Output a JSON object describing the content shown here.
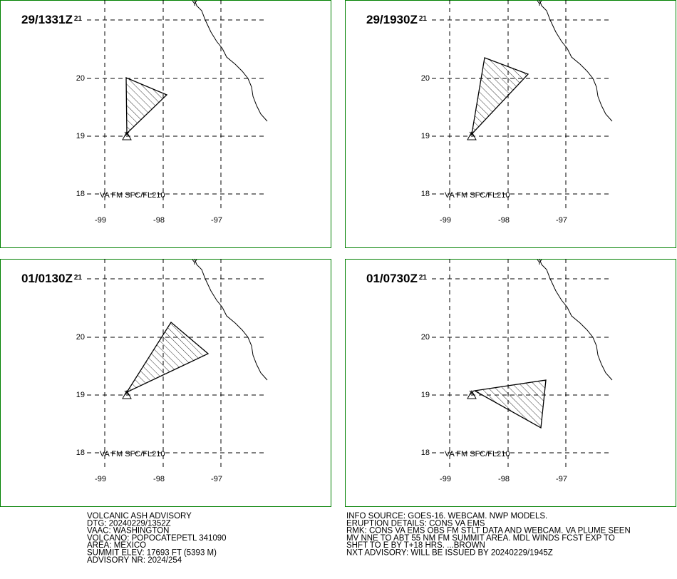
{
  "panels": [
    {
      "time": "29/1331Z",
      "superscript": "21"
    },
    {
      "time": "29/1930Z",
      "superscript": "21"
    },
    {
      "time": "01/0130Z",
      "superscript": "21"
    },
    {
      "time": "01/0730Z",
      "superscript": "21"
    }
  ],
  "lat_labels": [
    "20",
    "19",
    "18"
  ],
  "lon_labels": [
    "-99",
    "-98",
    "-97"
  ],
  "level": "VA FM SFC/FL210",
  "advisory_left": [
    "VOLCANIC ASH ADVISORY",
    "DTG: 20240229/1352Z",
    "VAAC: WASHINGTON",
    "VOLCANO: POPOCATEPETL 341090",
    "AREA: MEXICO",
    "SUMMIT ELEV: 17693 FT (5393 M)",
    "ADVISORY NR: 2024/254"
  ],
  "advisory_right": [
    "INFO SOURCE: GOES-16. WEBCAM. NWP MODELS.",
    "ERUPTION DETAILS: CONS VA EMS",
    "RMK: CONS VA EMS OBS FM STLT DATA AND WEBCAM. VA PLUME SEEN",
    "MV NNE TO ABT 55 NM FM SUMMIT AREA. MDL WINDS FCST EXP TO",
    "SHFT TO E BY T+18 HRS. ...BROWN",
    "NXT ADVISORY: WILL BE ISSUED BY 20240229/1945Z"
  ]
}
